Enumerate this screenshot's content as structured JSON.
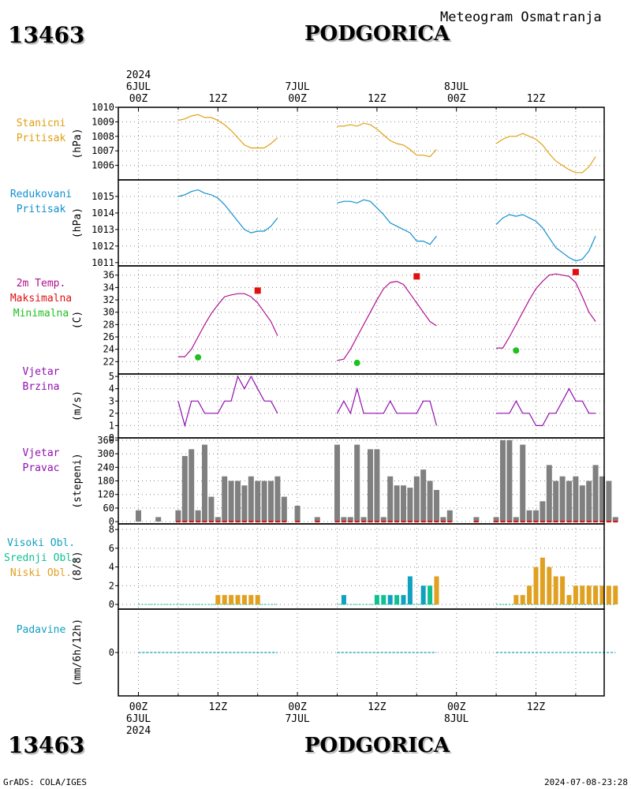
{
  "header": {
    "station_id": "13463",
    "station_name": "PODGORICA",
    "title": "Meteogram Osmatranja",
    "footer_left": "GrADS: COLA/IGES",
    "footer_right": "2024-07-08-23:28"
  },
  "colors": {
    "pressure": "#e0a010",
    "reduced_pressure": "#1090d0",
    "temperature": "#b01090",
    "max_temp": "#e01010",
    "min_temp": "#20c020",
    "wind": "#9010b0",
    "wind_dir_bar": "#808080",
    "high_cloud": "#10a0c0",
    "mid_cloud": "#10c090",
    "low_cloud": "#e0a020",
    "precip": "#10a0c0"
  },
  "chart_data": [
    {
      "type": "line",
      "panel": "station-pressure",
      "label_lines": [
        "Stanicni",
        "Pritisak"
      ],
      "ylabel": "(hPa)",
      "ylim": [
        1005,
        1010
      ],
      "yticks": [
        1006,
        1007,
        1008,
        1009,
        1010
      ],
      "x": [
        6,
        7,
        8,
        9,
        10,
        11,
        12,
        13,
        14,
        15,
        16,
        17,
        18,
        19,
        20,
        21,
        30,
        31,
        32,
        33,
        34,
        35,
        36,
        37,
        38,
        39,
        40,
        41,
        42,
        43,
        44,
        45,
        54,
        55,
        56,
        57,
        58,
        59,
        60,
        61,
        62,
        63,
        64,
        65,
        66,
        67,
        68,
        69
      ],
      "values": [
        1009.1,
        1009.2,
        1009.4,
        1009.5,
        1009.3,
        1009.3,
        1009.1,
        1008.8,
        1008.4,
        1007.9,
        1007.4,
        1007.2,
        1007.2,
        1007.2,
        1007.5,
        1007.9,
        1008.7,
        1008.7,
        1008.8,
        1008.7,
        1008.9,
        1008.8,
        1008.5,
        1008.1,
        1007.7,
        1007.5,
        1007.4,
        1007.1,
        1006.7,
        1006.7,
        1006.6,
        1007.1,
        1007.5,
        1007.8,
        1008.0,
        1008.0,
        1008.2,
        1008.0,
        1007.8,
        1007.4,
        1006.8,
        1006.3,
        1006.0,
        1005.7,
        1005.5,
        1005.5,
        1005.9,
        1006.6
      ]
    },
    {
      "type": "line",
      "panel": "reduced-pressure",
      "label_lines": [
        "Redukovani",
        "Pritisak"
      ],
      "ylabel": "(hPa)",
      "ylim": [
        1010.8,
        1016
      ],
      "yticks": [
        1011,
        1012,
        1013,
        1014,
        1015
      ],
      "x": [
        6,
        7,
        8,
        9,
        10,
        11,
        12,
        13,
        14,
        15,
        16,
        17,
        18,
        19,
        20,
        21,
        30,
        31,
        32,
        33,
        34,
        35,
        36,
        37,
        38,
        39,
        40,
        41,
        42,
        43,
        44,
        45,
        54,
        55,
        56,
        57,
        58,
        59,
        60,
        61,
        62,
        63,
        64,
        65,
        66,
        67,
        68,
        69
      ],
      "values": [
        1015.0,
        1015.1,
        1015.3,
        1015.4,
        1015.2,
        1015.1,
        1014.9,
        1014.5,
        1014.0,
        1013.5,
        1013.0,
        1012.8,
        1012.9,
        1012.9,
        1013.2,
        1013.7,
        1014.6,
        1014.7,
        1014.7,
        1014.6,
        1014.8,
        1014.7,
        1014.3,
        1013.9,
        1013.4,
        1013.2,
        1013.0,
        1012.8,
        1012.3,
        1012.3,
        1012.1,
        1012.6,
        1013.3,
        1013.7,
        1013.9,
        1013.8,
        1013.9,
        1013.7,
        1013.5,
        1013.1,
        1012.5,
        1011.9,
        1011.6,
        1011.3,
        1011.1,
        1011.2,
        1011.7,
        1012.6
      ]
    },
    {
      "type": "line",
      "panel": "temperature",
      "label_lines": [
        "2m Temp.",
        "Maksimalna",
        "Minimalna"
      ],
      "ylabel": "(C)",
      "ylim": [
        20,
        37.5
      ],
      "yticks": [
        22,
        24,
        26,
        28,
        30,
        32,
        34,
        36
      ],
      "x": [
        6,
        7,
        8,
        9,
        10,
        11,
        12,
        13,
        14,
        15,
        16,
        17,
        18,
        19,
        20,
        21,
        30,
        31,
        32,
        33,
        34,
        35,
        36,
        37,
        38,
        39,
        40,
        41,
        42,
        43,
        44,
        45,
        54,
        55,
        56,
        57,
        58,
        59,
        60,
        61,
        62,
        63,
        64,
        65,
        66,
        67,
        68,
        69
      ],
      "values": [
        22.8,
        22.8,
        24.0,
        26.0,
        28.0,
        29.8,
        31.2,
        32.5,
        32.8,
        33.0,
        33.0,
        32.5,
        31.5,
        30.0,
        28.5,
        26.2,
        22.2,
        22.4,
        24.0,
        26.0,
        28.0,
        30.0,
        32.0,
        33.8,
        34.8,
        35.0,
        34.5,
        33.0,
        31.5,
        30.0,
        28.5,
        27.8,
        24.2,
        24.2,
        26.0,
        28.0,
        30.0,
        32.0,
        33.8,
        35.0,
        36.0,
        36.2,
        36.0,
        35.8,
        34.8,
        32.5,
        30.0,
        28.5
      ],
      "max_points": [
        {
          "x": 18,
          "y": 33.5
        },
        {
          "x": 42,
          "y": 35.8
        },
        {
          "x": 66,
          "y": 36.5
        }
      ],
      "min_points": [
        {
          "x": 9,
          "y": 22.7
        },
        {
          "x": 33,
          "y": 21.8
        },
        {
          "x": 57,
          "y": 23.8
        }
      ]
    },
    {
      "type": "line",
      "panel": "wind-speed",
      "label_lines": [
        "Vjetar",
        "Brzina"
      ],
      "ylabel": "(m/s)",
      "ylim": [
        0,
        5.2
      ],
      "yticks": [
        0,
        1,
        2,
        3,
        4,
        5
      ],
      "x": [
        6,
        7,
        8,
        9,
        10,
        11,
        12,
        13,
        14,
        15,
        16,
        17,
        18,
        19,
        20,
        21,
        30,
        31,
        32,
        33,
        34,
        35,
        36,
        37,
        38,
        39,
        40,
        41,
        42,
        43,
        44,
        45,
        54,
        55,
        56,
        57,
        58,
        59,
        60,
        61,
        62,
        63,
        64,
        65,
        66,
        67,
        68,
        69
      ],
      "values": [
        3,
        1,
        3,
        3,
        2,
        2,
        2,
        3,
        3,
        5,
        4,
        5,
        4,
        3,
        3,
        2,
        2,
        3,
        2,
        4,
        2,
        2,
        2,
        2,
        3,
        2,
        2,
        2,
        2,
        3,
        3,
        1,
        2,
        2,
        2,
        3,
        2,
        2,
        1,
        1,
        2,
        2,
        3,
        4,
        3,
        3,
        2,
        2
      ]
    },
    {
      "type": "bar",
      "panel": "wind-direction",
      "label_lines": [
        "Vjetar",
        "Pravac"
      ],
      "ylabel": "(stepeni)",
      "ylim": [
        -10,
        370
      ],
      "yticks": [
        0,
        60,
        120,
        180,
        240,
        300,
        360
      ],
      "x": [
        0,
        3,
        6,
        7,
        8,
        9,
        10,
        11,
        12,
        13,
        14,
        15,
        16,
        17,
        18,
        19,
        20,
        21,
        22,
        24,
        27,
        30,
        31,
        32,
        33,
        34,
        35,
        36,
        37,
        38,
        39,
        40,
        41,
        42,
        43,
        44,
        45,
        46,
        47,
        51,
        54,
        55,
        56,
        57,
        58,
        59,
        60,
        61,
        62,
        63,
        64,
        65,
        66,
        67,
        68,
        69,
        70,
        71,
        72
      ],
      "values": [
        50,
        20,
        50,
        290,
        320,
        50,
        340,
        110,
        20,
        200,
        180,
        180,
        160,
        200,
        180,
        180,
        180,
        200,
        110,
        70,
        20,
        340,
        20,
        20,
        340,
        20,
        320,
        320,
        20,
        200,
        160,
        160,
        150,
        200,
        230,
        180,
        140,
        20,
        50,
        20,
        20,
        360,
        360,
        20,
        340,
        50,
        50,
        90,
        250,
        180,
        200,
        180,
        200,
        160,
        180,
        250,
        200,
        180,
        20
      ]
    },
    {
      "type": "bar",
      "panel": "clouds",
      "label_lines": [
        "Visoki Obl.",
        "Srednji Obl.",
        "Niski Obl."
      ],
      "ylabel": "(8/8)",
      "ylim": [
        -0.5,
        8.6
      ],
      "yticks": [
        0,
        2,
        4,
        6,
        8
      ],
      "series": [
        {
          "name": "Visoki Obl.",
          "x": [
            31,
            38,
            40,
            41,
            43
          ],
          "values": [
            1,
            1,
            1,
            3,
            2
          ]
        },
        {
          "name": "Srednji Obl.",
          "x": [
            36,
            37,
            39,
            44
          ],
          "values": [
            1,
            1,
            1,
            2
          ]
        },
        {
          "name": "Niski Obl.",
          "x": [
            12,
            13,
            14,
            15,
            16,
            17,
            18,
            45,
            57,
            58,
            59,
            60,
            61,
            62,
            63,
            64,
            65,
            66,
            67,
            68,
            69,
            70,
            71,
            72
          ],
          "values": [
            1,
            1,
            1,
            1,
            1,
            1,
            1,
            3,
            1,
            1,
            2,
            4,
            5,
            4,
            3,
            3,
            1,
            2,
            2,
            2,
            2,
            2,
            2,
            2
          ]
        }
      ]
    },
    {
      "type": "line",
      "panel": "precipitation",
      "label_lines": [
        "Padavine"
      ],
      "ylabel": "(mm/6h/12h)",
      "ylim": [
        -1,
        1
      ],
      "yticks": [
        0
      ],
      "values_constant": 0
    }
  ],
  "xaxis": {
    "top_labels": [
      {
        "x": 0,
        "lines": [
          "2024",
          "6JUL",
          "00Z"
        ]
      },
      {
        "x": 12,
        "lines": [
          "12Z"
        ]
      },
      {
        "x": 24,
        "lines": [
          "7JUL",
          "00Z"
        ]
      },
      {
        "x": 36,
        "lines": [
          "12Z"
        ]
      },
      {
        "x": 48,
        "lines": [
          "8JUL",
          "00Z"
        ]
      },
      {
        "x": 60,
        "lines": [
          "12Z"
        ]
      }
    ],
    "bottom_labels": [
      {
        "x": 0,
        "lines": [
          "00Z",
          "6JUL",
          "2024"
        ]
      },
      {
        "x": 12,
        "lines": [
          "12Z"
        ]
      },
      {
        "x": 24,
        "lines": [
          "00Z",
          "7JUL"
        ]
      },
      {
        "x": 36,
        "lines": [
          "12Z"
        ]
      },
      {
        "x": 48,
        "lines": [
          "00Z",
          "8JUL"
        ]
      },
      {
        "x": 60,
        "lines": [
          "12Z"
        ]
      }
    ]
  }
}
